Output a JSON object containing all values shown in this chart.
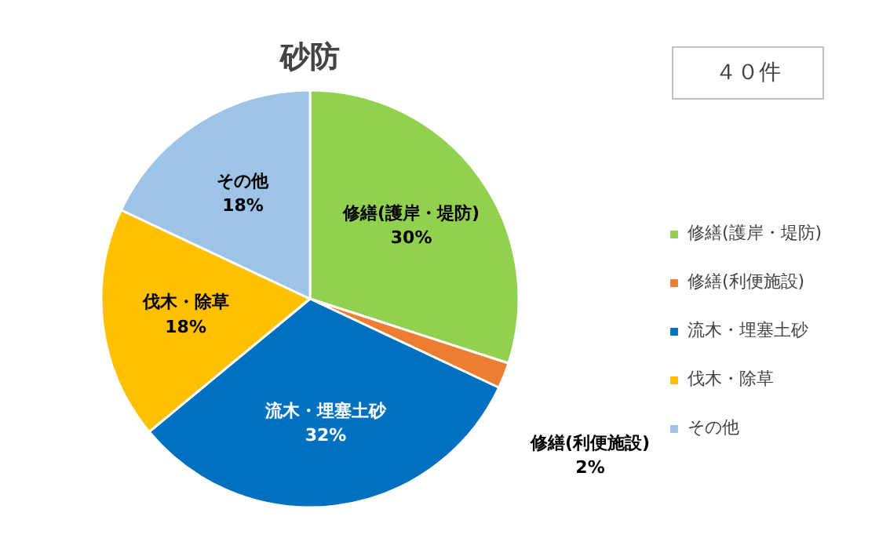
{
  "chart_data": {
    "type": "pie",
    "title": "砂防",
    "categories": [
      "修繕(護岸・堤防)",
      "修繕(利便施設)",
      "流木・埋塞土砂",
      "伐木・除草",
      "その他"
    ],
    "values": [
      30,
      2,
      32,
      18,
      18
    ],
    "colors": [
      "#92d050",
      "#ed7d31",
      "#0070c0",
      "#ffc000",
      "#9dc3e6"
    ],
    "value_labels": [
      "30%",
      "2%",
      "32%",
      "18%",
      "18%"
    ],
    "annotations": [
      "４０件"
    ],
    "legend": "right"
  }
}
